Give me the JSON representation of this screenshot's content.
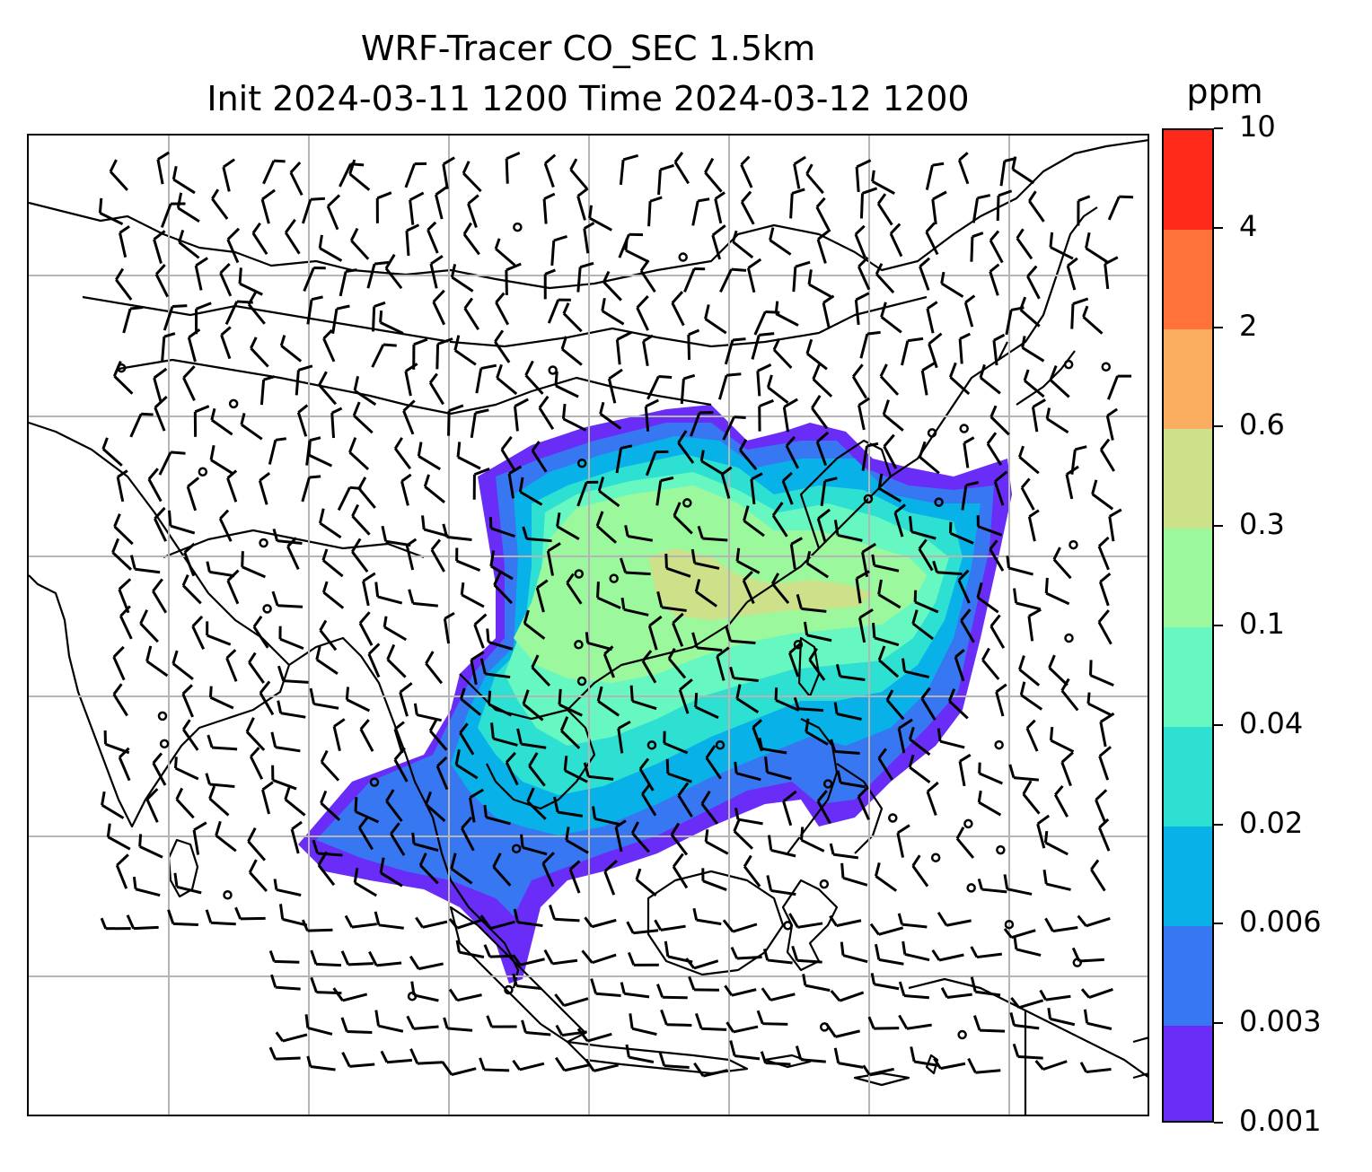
{
  "title": {
    "line1": "WRF-Tracer CO_SEC 1.5km",
    "line2": "Init 2024-03-11 1200 Time 2024-03-12 1200"
  },
  "colorbar": {
    "unit": "ppm",
    "levels": [
      "0.001",
      "0.003",
      "0.006",
      "0.02",
      "0.04",
      "0.1",
      "0.3",
      "0.6",
      "2",
      "4",
      "10"
    ],
    "colors": [
      "#6a2cf7",
      "#3877f2",
      "#08b2e8",
      "#2ee0d2",
      "#66f8c0",
      "#9cf89c",
      "#cde08a",
      "#fbae60",
      "#ff7238",
      "#ff2a1a"
    ]
  },
  "map": {
    "region": "East and Southeast Asia",
    "grid": true,
    "wind_barbs": true,
    "coastlines": true
  }
}
